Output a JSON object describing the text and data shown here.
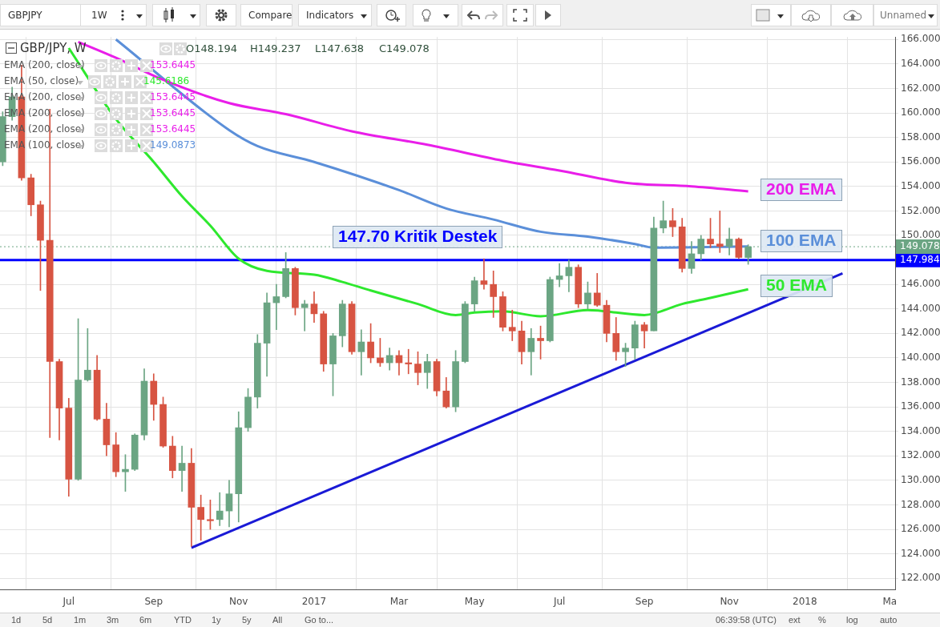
{
  "chart_data": {
    "type": "candlestick",
    "x": [
      "2016-05-16",
      "2016-05-23",
      "2016-05-30",
      "2016-06-06",
      "2016-06-13",
      "2016-06-20",
      "2016-06-27",
      "2016-07-04",
      "2016-07-11",
      "2016-07-18",
      "2016-07-25",
      "2016-08-01",
      "2016-08-08",
      "2016-08-15",
      "2016-08-22",
      "2016-08-29",
      "2016-09-05",
      "2016-09-12",
      "2016-09-19",
      "2016-09-26",
      "2016-10-03",
      "2016-10-10",
      "2016-10-17",
      "2016-10-24",
      "2016-10-31",
      "2016-11-07",
      "2016-11-14",
      "2016-11-21",
      "2016-11-28",
      "2016-12-05",
      "2016-12-12",
      "2016-12-19",
      "2016-12-26",
      "2017-01-02",
      "2017-01-09",
      "2017-01-16",
      "2017-01-23",
      "2017-01-30",
      "2017-02-06",
      "2017-02-13",
      "2017-02-20",
      "2017-02-27",
      "2017-03-06",
      "2017-03-13",
      "2017-03-20",
      "2017-03-27",
      "2017-04-03",
      "2017-04-10",
      "2017-04-17",
      "2017-04-24",
      "2017-05-01",
      "2017-05-08",
      "2017-05-15",
      "2017-05-22",
      "2017-05-29",
      "2017-06-05",
      "2017-06-12",
      "2017-06-19",
      "2017-06-26",
      "2017-07-03",
      "2017-07-10",
      "2017-07-17",
      "2017-07-24",
      "2017-07-31",
      "2017-08-07",
      "2017-08-14",
      "2017-08-21",
      "2017-08-28",
      "2017-09-04",
      "2017-09-11",
      "2017-09-18",
      "2017-09-25",
      "2017-10-02",
      "2017-10-09",
      "2017-10-16",
      "2017-10-23",
      "2017-10-30",
      "2017-11-06",
      "2017-11-13",
      "2017-11-20"
    ],
    "ohlc": [
      [
        156.0,
        160.1,
        155.7,
        159.7
      ],
      [
        159.7,
        162.1,
        159.4,
        161.3
      ],
      [
        161.3,
        163.9,
        154.5,
        154.7
      ],
      [
        154.7,
        155.0,
        151.6,
        152.5
      ],
      [
        152.5,
        152.8,
        145.5,
        149.6
      ],
      [
        149.6,
        160.3,
        133.5,
        139.7
      ],
      [
        139.7,
        139.9,
        133.3,
        135.9
      ],
      [
        135.9,
        136.7,
        128.7,
        130.1
      ],
      [
        130.1,
        143.2,
        130.0,
        138.2
      ],
      [
        138.2,
        142.4,
        138.1,
        139.0
      ],
      [
        139.0,
        140.2,
        134.9,
        135.0
      ],
      [
        135.0,
        136.3,
        132.0,
        132.9
      ],
      [
        132.9,
        133.9,
        130.3,
        130.7
      ],
      [
        130.7,
        132.1,
        129.1,
        130.9
      ],
      [
        130.9,
        133.8,
        130.8,
        133.7
      ],
      [
        133.7,
        139.1,
        133.3,
        138.1
      ],
      [
        138.1,
        138.7,
        134.9,
        136.2
      ],
      [
        136.2,
        136.8,
        132.7,
        132.8
      ],
      [
        132.8,
        133.6,
        130.2,
        130.8
      ],
      [
        130.8,
        132.8,
        129.1,
        131.4
      ],
      [
        131.4,
        132.6,
        124.6,
        127.8
      ],
      [
        127.8,
        128.8,
        125.1,
        126.8
      ],
      [
        126.8,
        128.4,
        126.0,
        126.7
      ],
      [
        126.8,
        129.0,
        126.3,
        127.5
      ],
      [
        127.5,
        130.0,
        126.2,
        128.9
      ],
      [
        128.9,
        135.6,
        126.6,
        134.3
      ],
      [
        134.3,
        137.5,
        134.0,
        136.8
      ],
      [
        136.8,
        141.9,
        135.9,
        141.2
      ],
      [
        141.2,
        145.3,
        138.5,
        144.5
      ],
      [
        144.5,
        146.0,
        142.3,
        145.0
      ],
      [
        145.0,
        148.6,
        144.9,
        147.3
      ],
      [
        147.3,
        147.4,
        143.5,
        144.1
      ],
      [
        144.1,
        144.7,
        142.2,
        144.4
      ],
      [
        144.4,
        145.4,
        142.9,
        143.6
      ],
      [
        143.6,
        143.8,
        138.9,
        139.5
      ],
      [
        139.5,
        142.0,
        136.9,
        141.8
      ],
      [
        141.8,
        144.7,
        140.9,
        144.4
      ],
      [
        144.4,
        144.6,
        140.3,
        140.5
      ],
      [
        140.5,
        142.3,
        138.6,
        141.3
      ],
      [
        141.3,
        142.8,
        139.6,
        140.0
      ],
      [
        140.0,
        141.6,
        139.3,
        139.6
      ],
      [
        139.6,
        140.8,
        139.0,
        140.2
      ],
      [
        140.2,
        140.6,
        138.6,
        139.6
      ],
      [
        139.6,
        140.7,
        138.7,
        139.5
      ],
      [
        139.5,
        140.5,
        137.8,
        138.8
      ],
      [
        138.8,
        140.3,
        137.5,
        139.7
      ],
      [
        139.7,
        139.9,
        136.9,
        137.3
      ],
      [
        137.3,
        138.4,
        135.9,
        136.0
      ],
      [
        136.0,
        140.6,
        135.6,
        139.7
      ],
      [
        139.7,
        144.6,
        139.6,
        144.4
      ],
      [
        144.4,
        146.6,
        143.8,
        146.3
      ],
      [
        146.3,
        148.1,
        145.6,
        146.0
      ],
      [
        146.0,
        147.1,
        143.3,
        145.0
      ],
      [
        145.0,
        145.4,
        142.2,
        142.5
      ],
      [
        142.5,
        143.9,
        141.4,
        142.2
      ],
      [
        142.2,
        143.0,
        139.5,
        140.5
      ],
      [
        140.5,
        142.4,
        138.6,
        141.6
      ],
      [
        141.6,
        142.6,
        139.9,
        141.4
      ],
      [
        141.4,
        146.6,
        141.3,
        146.4
      ],
      [
        146.4,
        147.7,
        145.8,
        146.7
      ],
      [
        146.7,
        148.0,
        145.4,
        147.4
      ],
      [
        147.4,
        147.6,
        144.1,
        144.4
      ],
      [
        144.4,
        146.2,
        144.0,
        145.3
      ],
      [
        145.3,
        146.9,
        144.2,
        144.3
      ],
      [
        144.3,
        144.7,
        141.3,
        142.0
      ],
      [
        142.0,
        143.3,
        139.8,
        140.5
      ],
      [
        140.5,
        141.2,
        139.3,
        140.8
      ],
      [
        140.8,
        143.0,
        139.9,
        142.7
      ],
      [
        142.7,
        142.9,
        140.8,
        142.2
      ],
      [
        142.2,
        151.5,
        142.2,
        150.6
      ],
      [
        150.6,
        152.8,
        150.2,
        151.2
      ],
      [
        151.2,
        152.2,
        149.9,
        150.7
      ],
      [
        150.7,
        151.4,
        147.0,
        147.3
      ],
      [
        147.3,
        149.5,
        146.9,
        148.5
      ],
      [
        148.5,
        150.0,
        148.0,
        149.7
      ],
      [
        149.7,
        151.4,
        149.0,
        149.3
      ],
      [
        149.3,
        152.0,
        148.6,
        149.1
      ],
      [
        149.1,
        150.6,
        148.4,
        149.7
      ],
      [
        149.7,
        149.8,
        148.1,
        148.2
      ],
      [
        148.194,
        149.237,
        147.638,
        149.078
      ]
    ],
    "colors": [
      "#6ba583",
      "#6ba583",
      "#d75442",
      "#d75442",
      "#d75442",
      "#d75442",
      "#d75442",
      "#d75442",
      "#6ba583",
      "#6ba583",
      "#d75442",
      "#d75442",
      "#d75442",
      "#6ba583",
      "#6ba583",
      "#6ba583",
      "#d75442",
      "#d75442",
      "#d75442",
      "#6ba583",
      "#d75442",
      "#d75442",
      "#d75442",
      "#6ba583",
      "#6ba583",
      "#6ba583",
      "#6ba583",
      "#6ba583",
      "#6ba583",
      "#6ba583",
      "#6ba583",
      "#d75442",
      "#6ba583",
      "#d75442",
      "#d75442",
      "#6ba583",
      "#6ba583",
      "#d75442",
      "#6ba583",
      "#d75442",
      "#d75442",
      "#6ba583",
      "#d75442",
      "#d75442",
      "#d75442",
      "#6ba583",
      "#d75442",
      "#d75442",
      "#6ba583",
      "#6ba583",
      "#6ba583",
      "#d75442",
      "#d75442",
      "#d75442",
      "#d75442",
      "#d75442",
      "#6ba583",
      "#d75442",
      "#6ba583",
      "#6ba583",
      "#6ba583",
      "#d75442",
      "#6ba583",
      "#d75442",
      "#d75442",
      "#d75442",
      "#6ba583",
      "#6ba583",
      "#d75442",
      "#6ba583",
      "#6ba583",
      "#d75442",
      "#d75442",
      "#6ba583",
      "#6ba583",
      "#d75442",
      "#d75442",
      "#6ba583",
      "#d75442",
      "#6ba583"
    ],
    "series": [
      {
        "type": "line",
        "color": "#e91ee9",
        "x": [
          "2016-07-11",
          "2016-08-08",
          "2016-09-12",
          "2016-10-31",
          "2016-12-12",
          "2017-01-30",
          "2017-03-27",
          "2017-05-22",
          "2017-07-03",
          "2017-08-21",
          "2017-10-09",
          "2017-11-20"
        ],
        "values": [
          165.8,
          164.5,
          162.7,
          160.8,
          159.9,
          158.5,
          157.4,
          156.1,
          155.3,
          154.3,
          154.0,
          153.6
        ]
      },
      {
        "type": "line",
        "color": "#5b8fd9",
        "x": [
          "2016-08-08",
          "2016-10-31",
          "2016-11-21",
          "2017-01-02",
          "2017-03-06",
          "2017-04-10",
          "2017-05-15",
          "2017-06-19",
          "2017-07-24",
          "2017-08-28",
          "2017-09-11",
          "2017-11-20"
        ],
        "values": [
          166.0,
          158.6,
          157.3,
          156.0,
          153.7,
          152.2,
          151.3,
          150.3,
          149.9,
          149.3,
          149.0,
          149.1
        ]
      },
      {
        "type": "line",
        "color": "#2ee82e",
        "x": [
          "2016-07-04",
          "2016-08-08",
          "2016-09-05",
          "2016-09-26",
          "2016-10-17",
          "2016-11-07",
          "2016-11-28",
          "2017-01-02",
          "2017-01-23",
          "2017-02-13",
          "2017-03-20",
          "2017-04-17",
          "2017-05-01",
          "2017-05-22",
          "2017-06-19",
          "2017-07-24",
          "2017-09-04",
          "2017-10-02",
          "2017-10-23",
          "2017-11-20"
        ],
        "values": [
          165.3,
          159.5,
          156.0,
          153.2,
          150.8,
          148.1,
          147.1,
          146.8,
          146.2,
          145.5,
          144.4,
          143.5,
          143.7,
          143.8,
          143.4,
          143.9,
          143.5,
          144.4,
          144.9,
          145.6
        ]
      },
      {
        "type": "line",
        "color": "#1a1ad6",
        "x": [
          "2016-10-03",
          "2018-01-29"
        ],
        "values": [
          124.5,
          146.9
        ]
      }
    ],
    "xlim": [
      "2016-05-14",
      "2018-03-09"
    ],
    "xticks": [
      {
        "value": "2016-07-04",
        "label": "Jul"
      },
      {
        "value": "2016-09-05",
        "label": "Sep"
      },
      {
        "value": "2016-11-07",
        "label": "Nov"
      },
      {
        "value": "2017-01-02",
        "label": "2017"
      },
      {
        "value": "2017-03-06",
        "label": "Mar"
      },
      {
        "value": "2017-05-01",
        "label": "May"
      },
      {
        "value": "2017-07-03",
        "label": "Jul"
      },
      {
        "value": "2017-09-04",
        "label": "Sep"
      },
      {
        "value": "2017-11-06",
        "label": "Nov"
      },
      {
        "value": "2018-01-01",
        "label": "2018"
      },
      {
        "value": "2018-03-05",
        "label": "Ma"
      }
    ],
    "ylim": [
      121.1,
      166.2
    ],
    "yticks": [
      {
        "value": 122,
        "label": "122.000"
      },
      {
        "value": 124,
        "label": "124.000"
      },
      {
        "value": 126,
        "label": "126.000"
      },
      {
        "value": 128,
        "label": "128.000"
      },
      {
        "value": 130,
        "label": "130.000"
      },
      {
        "value": 132,
        "label": "132.000"
      },
      {
        "value": 134,
        "label": "134.000"
      },
      {
        "value": 136,
        "label": "136.000"
      },
      {
        "value": 138,
        "label": "138.000"
      },
      {
        "value": 140,
        "label": "140.000"
      },
      {
        "value": 142,
        "label": "142.000"
      },
      {
        "value": 144,
        "label": "144.000"
      },
      {
        "value": 146,
        "label": "146.000"
      },
      {
        "value": 150,
        "label": "150.000"
      },
      {
        "value": 152,
        "label": "152.000"
      },
      {
        "value": 154,
        "label": "154.000"
      },
      {
        "value": 156,
        "label": "156.000"
      },
      {
        "value": 158,
        "label": "158.000"
      },
      {
        "value": 160,
        "label": "160.000"
      },
      {
        "value": 162,
        "label": "162.000"
      },
      {
        "value": 164,
        "label": "164.000"
      },
      {
        "value": 166,
        "label": "166.000"
      }
    ],
    "ref_lines": [
      {
        "axis": "y",
        "value": 147.984,
        "label": "147.984",
        "color": "#0000ff",
        "line_style": "solid"
      },
      {
        "axis": "y",
        "value": 149.078,
        "label": "149.078",
        "color": "#6ba583",
        "line_style": "dotted"
      }
    ],
    "grid": true,
    "marker": "none",
    "line_style": "solid",
    "annotations": [
      "GBPJPY",
      "1W",
      "Compare",
      "Indicators",
      "Unnamed",
      "GBP/JPY, W",
      "O148.194",
      "H149.237",
      "L147.638",
      "C149.078",
      "EMA (200, close)",
      "153.6445",
      "EMA (50, close)",
      "145.6186",
      "EMA (200, close)",
      "153.6445",
      "EMA (200, close)",
      "153.6445",
      "EMA (200, close)",
      "153.6445",
      "EMA (100, close)",
      "149.0873",
      "1d",
      "5d",
      "1m",
      "3m",
      "6m",
      "YTD",
      "1y",
      "5y",
      "All",
      "Go to...",
      "06:39:58 (UTC)",
      "ext",
      "%",
      "log",
      "auto",
      "147.70 Kritik Destek",
      "200 EMA",
      "100 EMA",
      "50 EMA"
    ]
  }
}
